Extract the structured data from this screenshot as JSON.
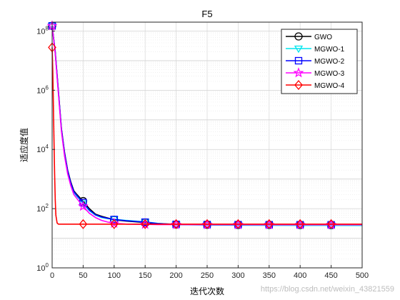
{
  "chart_data": {
    "type": "line",
    "title": "F5",
    "xlabel": "迭代次数",
    "ylabel": "适应度值",
    "xlim": [
      0,
      500
    ],
    "ylim": [
      1,
      200000000
    ],
    "yscale": "log",
    "grid": "on",
    "legend_position": "top-right",
    "xticks": [
      "0",
      "50",
      "100",
      "150",
      "200",
      "250",
      "300",
      "350",
      "400",
      "450",
      "500"
    ],
    "yticks": [
      {
        "base": "10",
        "exp": "0"
      },
      {
        "base": "10",
        "exp": "2"
      },
      {
        "base": "10",
        "exp": "4"
      },
      {
        "base": "10",
        "exp": "6"
      },
      {
        "base": "10",
        "exp": "8"
      }
    ],
    "series": [
      {
        "name": "GWO",
        "color": "#000000",
        "marker": "circle",
        "x": [
          0,
          5,
          10,
          15,
          20,
          25,
          30,
          35,
          40,
          45,
          50,
          60,
          70,
          80,
          90,
          100,
          120,
          150,
          170,
          200,
          250,
          300,
          350,
          400,
          450,
          500
        ],
        "y": [
          150000000,
          20000000,
          1000000,
          50000,
          8000,
          2000,
          800,
          400,
          300,
          230,
          180,
          100,
          65,
          55,
          48,
          42,
          38,
          34,
          31,
          29,
          28.5,
          28,
          28,
          27.8,
          27.7,
          27.6
        ]
      },
      {
        "name": "MGWO-1",
        "color": "#00e5ee",
        "marker": "triangle-down",
        "x": [
          0,
          5,
          10,
          15,
          20,
          25,
          30,
          35,
          40,
          45,
          50,
          60,
          70,
          80,
          90,
          100,
          120,
          150,
          170,
          200,
          250,
          300,
          350,
          400,
          450,
          500
        ],
        "y": [
          150000000,
          18000000,
          900000,
          45000,
          7000,
          1800,
          700,
          350,
          260,
          200,
          150,
          85,
          60,
          50,
          46,
          44,
          40,
          36,
          32,
          28.8,
          28,
          27.5,
          27.3,
          27.2,
          27.1,
          27
        ]
      },
      {
        "name": "MGWO-2",
        "color": "#0000ff",
        "marker": "square",
        "x": [
          0,
          5,
          10,
          15,
          20,
          25,
          30,
          35,
          40,
          45,
          50,
          60,
          70,
          80,
          90,
          100,
          120,
          150,
          170,
          200,
          250,
          300,
          350,
          400,
          450,
          500
        ],
        "y": [
          150000000,
          19000000,
          950000,
          48000,
          7500,
          1900,
          750,
          380,
          280,
          210,
          160,
          90,
          62,
          52,
          47,
          43,
          39,
          35,
          31.5,
          29.5,
          29,
          28.8,
          28.7,
          28.6,
          28.5,
          28.5
        ]
      },
      {
        "name": "MGWO-3",
        "color": "#ff00ff",
        "marker": "star",
        "x": [
          0,
          5,
          10,
          15,
          20,
          25,
          30,
          35,
          40,
          45,
          50,
          60,
          70,
          80,
          90,
          100,
          120,
          150,
          170,
          200,
          250,
          300,
          350,
          400,
          450,
          500
        ],
        "y": [
          150000000,
          17000000,
          800000,
          40000,
          6000,
          1500,
          600,
          300,
          220,
          160,
          120,
          70,
          50,
          40,
          35,
          32,
          30,
          29.5,
          29,
          29,
          28.8,
          28.7,
          28.6,
          28.5,
          28.5,
          28.5
        ]
      },
      {
        "name": "MGWO-4",
        "color": "#ff0000",
        "marker": "diamond",
        "x": [
          0,
          1,
          2,
          3,
          4,
          5,
          6,
          8,
          10,
          20,
          50,
          100,
          150,
          200,
          250,
          300,
          350,
          400,
          450,
          500
        ],
        "y": [
          28000000,
          5000000,
          300000,
          20000,
          1500,
          200,
          60,
          33,
          30,
          30,
          30,
          30,
          30,
          30,
          30,
          30,
          30,
          30,
          30,
          30
        ]
      }
    ]
  },
  "watermark": "https://blog.csdn.net/weixin_43821559"
}
